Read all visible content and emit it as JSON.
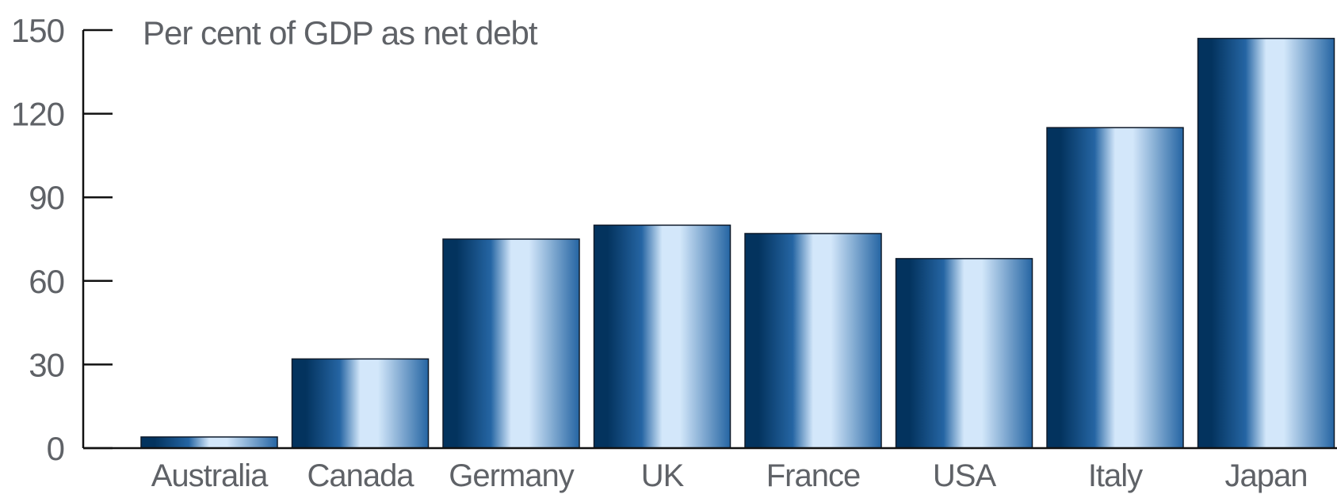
{
  "chart_data": {
    "type": "bar",
    "title": "Per cent of GDP as net debt",
    "categories": [
      "Australia",
      "Canada",
      "Germany",
      "UK",
      "France",
      "USA",
      "Italy",
      "Japan"
    ],
    "values": [
      4,
      32,
      75,
      80,
      77,
      68,
      115,
      147
    ],
    "ylim": [
      0,
      150
    ],
    "yticks": [
      "0",
      "30",
      "60",
      "90",
      "120",
      "150"
    ],
    "grid": false,
    "legend": "none",
    "colors": {
      "bar_dark": "#03335e",
      "bar_mid": "#2565a3",
      "bar_light": "#d3e7fa",
      "bar_edge": "#0e1a2a",
      "axis": "#111111",
      "text": "#5f6267"
    }
  }
}
